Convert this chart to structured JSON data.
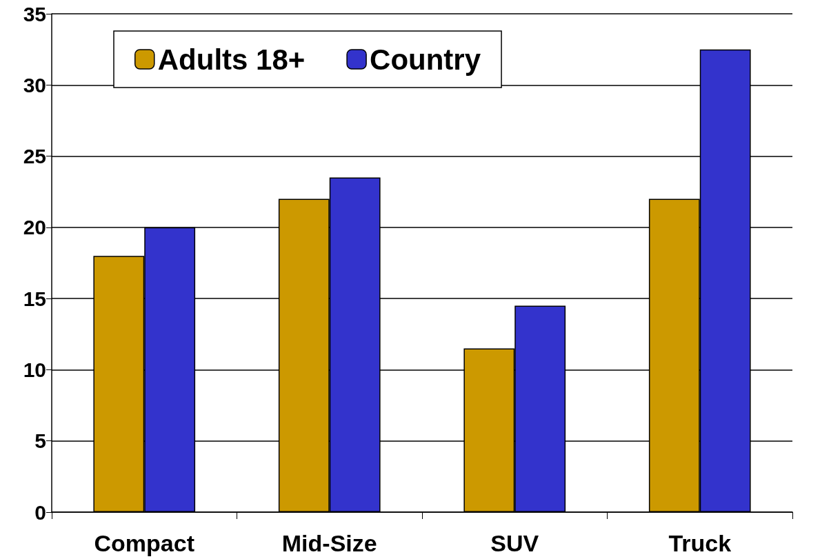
{
  "chart_data": {
    "type": "bar",
    "categories": [
      "Compact",
      "Mid-Size",
      "SUV",
      "Truck"
    ],
    "series": [
      {
        "name": "Adults 18+",
        "color": "#cc9900",
        "values": [
          18,
          22,
          11.5,
          22
        ]
      },
      {
        "name": "Country",
        "color": "#3333cc",
        "values": [
          20,
          23.5,
          14.5,
          32.5
        ]
      }
    ],
    "ylim": [
      0,
      35
    ],
    "yticks": [
      0,
      5,
      10,
      15,
      20,
      25,
      30,
      35
    ],
    "grid": "y",
    "legend": "top left"
  }
}
